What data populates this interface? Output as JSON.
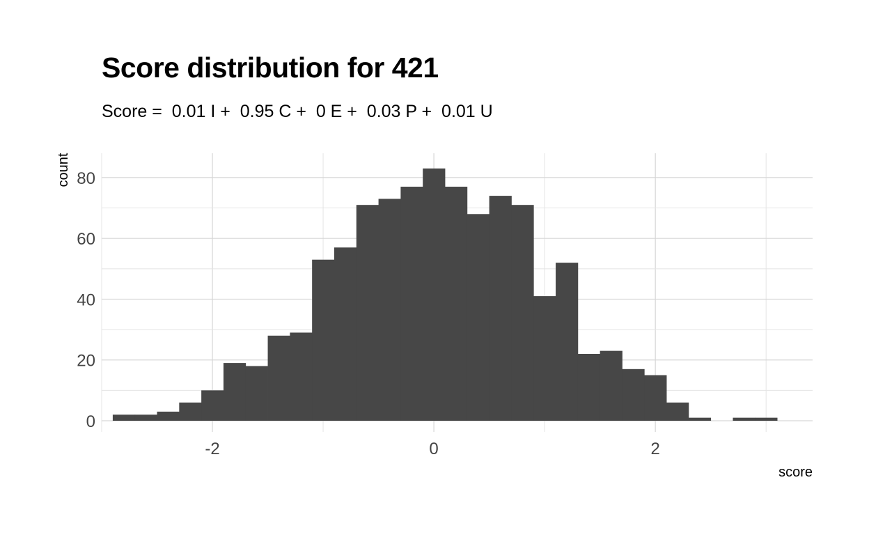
{
  "chart_data": {
    "type": "bar",
    "title": "Score distribution for 421",
    "subtitle": "Score =  0.01 I +  0.95 C +  0 E +  0.03 P +  0.01 U",
    "xlabel": "score",
    "ylabel": "count",
    "xlim": [
      -3.0,
      3.42
    ],
    "ylim": [
      0,
      88
    ],
    "x_ticks": [
      -2,
      0,
      2
    ],
    "y_ticks": [
      0,
      20,
      40,
      60,
      80
    ],
    "grid": true,
    "bin_width": 0.2,
    "bins": [
      {
        "x": -2.8,
        "count": 2
      },
      {
        "x": -2.6,
        "count": 2
      },
      {
        "x": -2.4,
        "count": 3
      },
      {
        "x": -2.2,
        "count": 6
      },
      {
        "x": -2.0,
        "count": 10
      },
      {
        "x": -1.8,
        "count": 19
      },
      {
        "x": -1.6,
        "count": 18
      },
      {
        "x": -1.4,
        "count": 28
      },
      {
        "x": -1.2,
        "count": 29
      },
      {
        "x": -1.0,
        "count": 53
      },
      {
        "x": -0.8,
        "count": 57
      },
      {
        "x": -0.6,
        "count": 71
      },
      {
        "x": -0.4,
        "count": 73
      },
      {
        "x": -0.2,
        "count": 77
      },
      {
        "x": 0.0,
        "count": 83
      },
      {
        "x": 0.2,
        "count": 77
      },
      {
        "x": 0.4,
        "count": 68
      },
      {
        "x": 0.6,
        "count": 74
      },
      {
        "x": 0.8,
        "count": 71
      },
      {
        "x": 1.0,
        "count": 41
      },
      {
        "x": 1.2,
        "count": 52
      },
      {
        "x": 1.4,
        "count": 22
      },
      {
        "x": 1.6,
        "count": 23
      },
      {
        "x": 1.8,
        "count": 17
      },
      {
        "x": 2.0,
        "count": 15
      },
      {
        "x": 2.2,
        "count": 6
      },
      {
        "x": 2.4,
        "count": 1
      },
      {
        "x": 2.6,
        "count": 0
      },
      {
        "x": 2.8,
        "count": 1
      },
      {
        "x": 3.0,
        "count": 1
      }
    ]
  }
}
